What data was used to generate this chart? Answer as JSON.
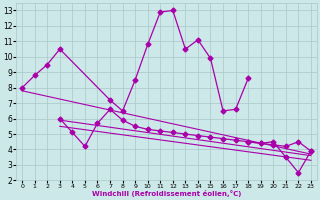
{
  "xlabel": "Windchill (Refroidissement éolien,°C)",
  "x_values": [
    0,
    1,
    2,
    3,
    4,
    5,
    6,
    7,
    8,
    9,
    10,
    11,
    12,
    13,
    14,
    15,
    16,
    17,
    18,
    19,
    20,
    21,
    22,
    23
  ],
  "series1_x": [
    0,
    1,
    2,
    3,
    7,
    8,
    9,
    10,
    11,
    12,
    13,
    14,
    15,
    16,
    17,
    18
  ],
  "series1_y": [
    8.0,
    8.8,
    9.5,
    10.5,
    7.2,
    6.5,
    8.5,
    10.8,
    12.9,
    13.0,
    10.5,
    11.1,
    9.9,
    6.5,
    6.6,
    8.6
  ],
  "series2_x": [
    3,
    4,
    5,
    6,
    7,
    8,
    9,
    10,
    11,
    12,
    13,
    14,
    15,
    16,
    17,
    18,
    19,
    20,
    21,
    22,
    23
  ],
  "series2_y": [
    6.0,
    5.1,
    4.2,
    5.7,
    6.6,
    5.9,
    5.5,
    5.3,
    5.2,
    5.1,
    5.0,
    4.9,
    4.8,
    4.7,
    4.6,
    4.5,
    4.4,
    4.3,
    4.2,
    4.5,
    3.9
  ],
  "series3_x": [
    18,
    19,
    20,
    21,
    22,
    23
  ],
  "series3_y": [
    4.5,
    4.4,
    4.5,
    3.5,
    2.5,
    3.9
  ],
  "trend1_x": [
    0,
    23
  ],
  "trend1_y": [
    7.8,
    3.7
  ],
  "trend2_x": [
    3,
    23
  ],
  "trend2_y": [
    5.9,
    3.6
  ],
  "trend3_x": [
    3,
    23
  ],
  "trend3_y": [
    5.5,
    3.3
  ],
  "line_color": "#aa00aa",
  "bg_color": "#cce8e8",
  "grid_color": "#aac8c8",
  "xlim": [
    -0.5,
    23.5
  ],
  "ylim": [
    2,
    13.5
  ],
  "yticks": [
    2,
    3,
    4,
    5,
    6,
    7,
    8,
    9,
    10,
    11,
    12,
    13
  ],
  "xticks": [
    0,
    1,
    2,
    3,
    4,
    5,
    6,
    7,
    8,
    9,
    10,
    11,
    12,
    13,
    14,
    15,
    16,
    17,
    18,
    19,
    20,
    21,
    22,
    23
  ]
}
